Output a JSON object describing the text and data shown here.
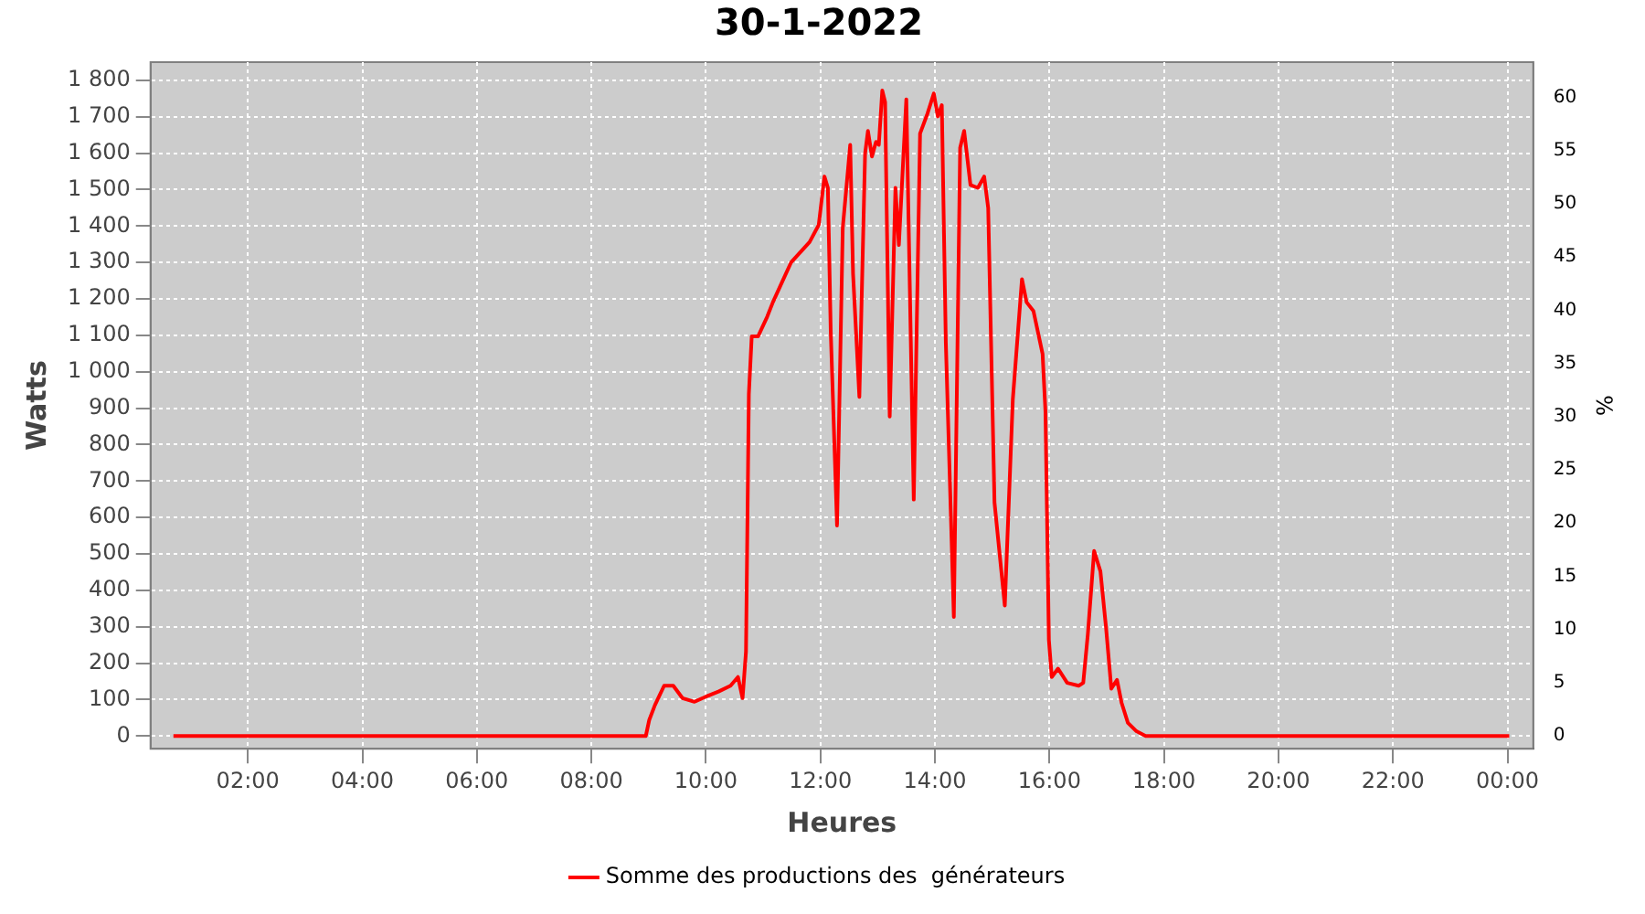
{
  "chart_data": {
    "type": "line",
    "title": "30-1-2022",
    "xlabel": "Heures",
    "ylabel": "Watts",
    "y2label": "%",
    "xlim": [
      0.3,
      24.45
    ],
    "xticks": [
      {
        "value": 2,
        "label": "02:00"
      },
      {
        "value": 4,
        "label": "04:00"
      },
      {
        "value": 6,
        "label": "06:00"
      },
      {
        "value": 8,
        "label": "08:00"
      },
      {
        "value": 10,
        "label": "10:00"
      },
      {
        "value": 12,
        "label": "12:00"
      },
      {
        "value": 14,
        "label": "14:00"
      },
      {
        "value": 16,
        "label": "16:00"
      },
      {
        "value": 18,
        "label": "18:00"
      },
      {
        "value": 20,
        "label": "20:00"
      },
      {
        "value": 22,
        "label": "22:00"
      },
      {
        "value": 24,
        "label": "00:00"
      }
    ],
    "ylim": [
      -35,
      1850
    ],
    "yticks": [
      0,
      100,
      200,
      300,
      400,
      500,
      600,
      700,
      800,
      900,
      {
        "value": 1000,
        "label": "1 000"
      },
      {
        "value": 1100,
        "label": "1 100"
      },
      {
        "value": 1200,
        "label": "1 200"
      },
      {
        "value": 1300,
        "label": "1 300"
      },
      {
        "value": 1400,
        "label": "1 400"
      },
      {
        "value": 1500,
        "label": "1 500"
      },
      {
        "value": 1600,
        "label": "1 600"
      },
      {
        "value": 1700,
        "label": "1 700"
      },
      {
        "value": 1800,
        "label": "1 800"
      }
    ],
    "y2lim": [
      -1.2,
      63.3
    ],
    "y2ticks": [
      0,
      5,
      10,
      15,
      20,
      25,
      30,
      35,
      40,
      45,
      50,
      55,
      60
    ],
    "grid": true,
    "legend": "bottom",
    "marker": "none",
    "line_style": "solid",
    "x": [
      0.7,
      8.63,
      8.95,
      9.01,
      9.11,
      9.27,
      9.43,
      9.59,
      9.8,
      10.0,
      10.22,
      10.43,
      10.56,
      10.64,
      10.7,
      10.75,
      10.8,
      10.91,
      11.07,
      11.17,
      11.33,
      11.49,
      11.81,
      11.97,
      12.07,
      12.13,
      12.18,
      12.29,
      12.39,
      12.52,
      12.57,
      12.68,
      12.78,
      12.83,
      12.9,
      12.97,
      13.02,
      13.08,
      13.13,
      13.21,
      13.31,
      13.37,
      13.5,
      13.63,
      13.74,
      13.87,
      13.98,
      14.05,
      14.12,
      14.19,
      14.33,
      14.44,
      14.51,
      14.62,
      14.75,
      14.86,
      14.93,
      15.04,
      15.22,
      15.36,
      15.52,
      15.6,
      15.72,
      15.88,
      15.93,
      15.99,
      16.04,
      16.15,
      16.31,
      16.51,
      16.59,
      16.67,
      16.78,
      16.89,
      16.99,
      17.08,
      17.18,
      17.26,
      17.37,
      17.52,
      17.68,
      24.03
    ],
    "series": [
      {
        "name": "Somme des productions des  générateurs",
        "color": "#ff0000",
        "values": [
          0,
          0,
          0,
          44,
          85,
          138,
          138,
          104,
          94,
          108,
          122,
          138,
          162,
          104,
          232,
          939,
          1097,
          1097,
          1151,
          1191,
          1246,
          1301,
          1356,
          1403,
          1536,
          1505,
          1112,
          578,
          1395,
          1623,
          1269,
          931,
          1599,
          1661,
          1591,
          1631,
          1623,
          1772,
          1740,
          877,
          1505,
          1348,
          1748,
          649,
          1654,
          1709,
          1764,
          1701,
          1732,
          1081,
          327,
          1615,
          1661,
          1513,
          1505,
          1536,
          1450,
          641,
          358,
          924,
          1254,
          1191,
          1167,
          1049,
          892,
          264,
          162,
          185,
          146,
          138,
          146,
          279,
          508,
          452,
          295,
          130,
          154,
          91,
          36,
          13,
          0,
          0
        ]
      }
    ]
  }
}
